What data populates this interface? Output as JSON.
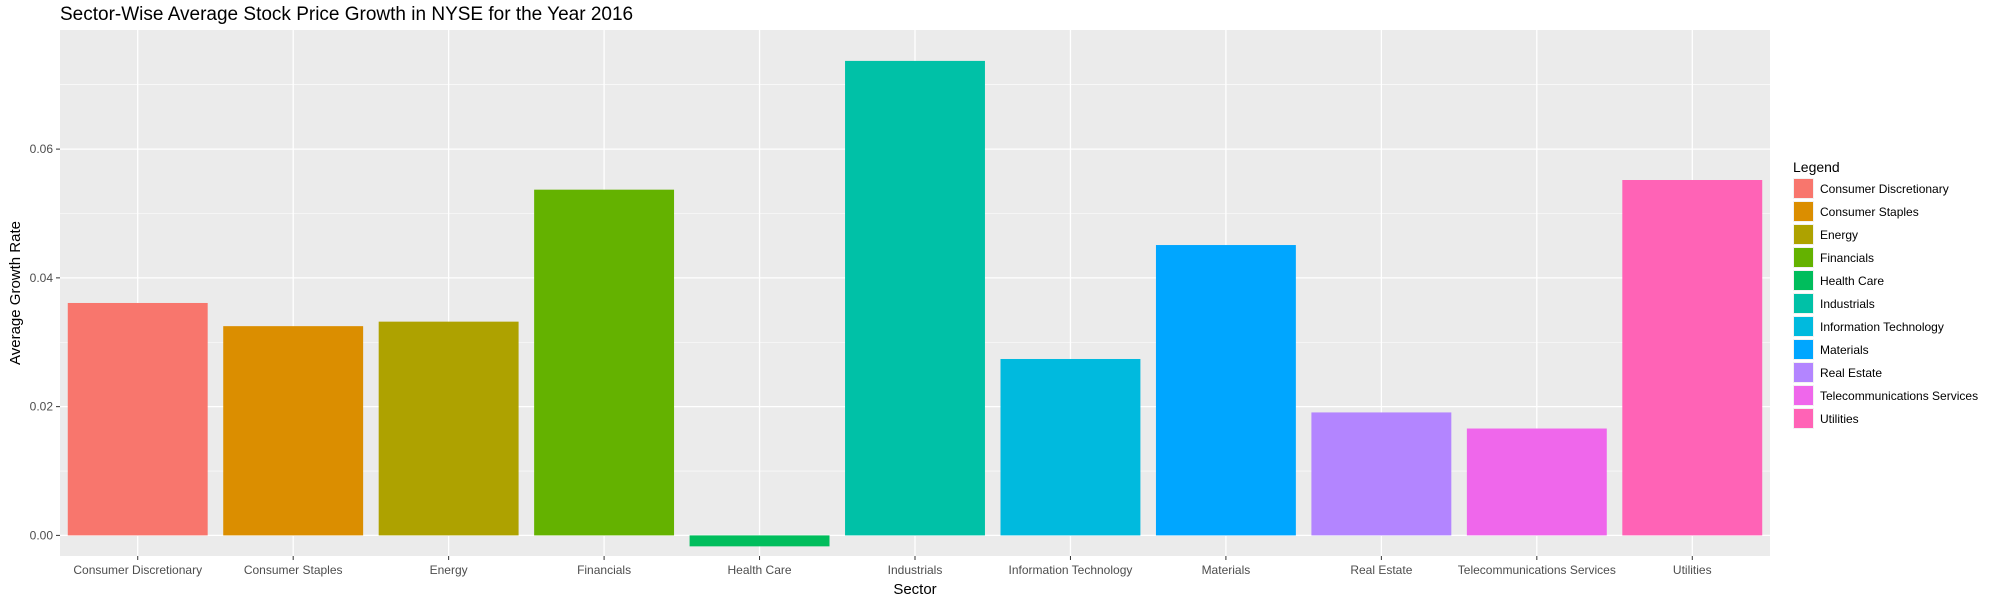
{
  "chart_data": {
    "type": "bar",
    "title": "Sector-Wise Average Stock Price Growth in NYSE for the Year 2016",
    "xlabel": "Sector",
    "ylabel": "Average Growth Rate",
    "legend_title": "Legend",
    "legend_position": "right",
    "grid": true,
    "ylim": [
      -0.0032,
      0.0785
    ],
    "yticks": [
      0.0,
      0.02,
      0.04,
      0.06
    ],
    "ytick_labels": [
      "0.00",
      "0.02",
      "0.04",
      "0.06"
    ],
    "categories": [
      "Consumer Discretionary",
      "Consumer Staples",
      "Energy",
      "Financials",
      "Health Care",
      "Industrials",
      "Information Technology",
      "Materials",
      "Real Estate",
      "Telecommunications Services",
      "Utilities"
    ],
    "values": [
      0.0361,
      0.0325,
      0.0332,
      0.0537,
      -0.0017,
      0.0737,
      0.0274,
      0.0451,
      0.0191,
      0.0166,
      0.0552
    ],
    "colors": [
      "#F8766D",
      "#DB8E00",
      "#AEA200",
      "#64B200",
      "#00BD5C",
      "#00C1A7",
      "#00BADE",
      "#00A6FF",
      "#B385FF",
      "#EF67EB",
      "#FF63B6"
    ]
  }
}
